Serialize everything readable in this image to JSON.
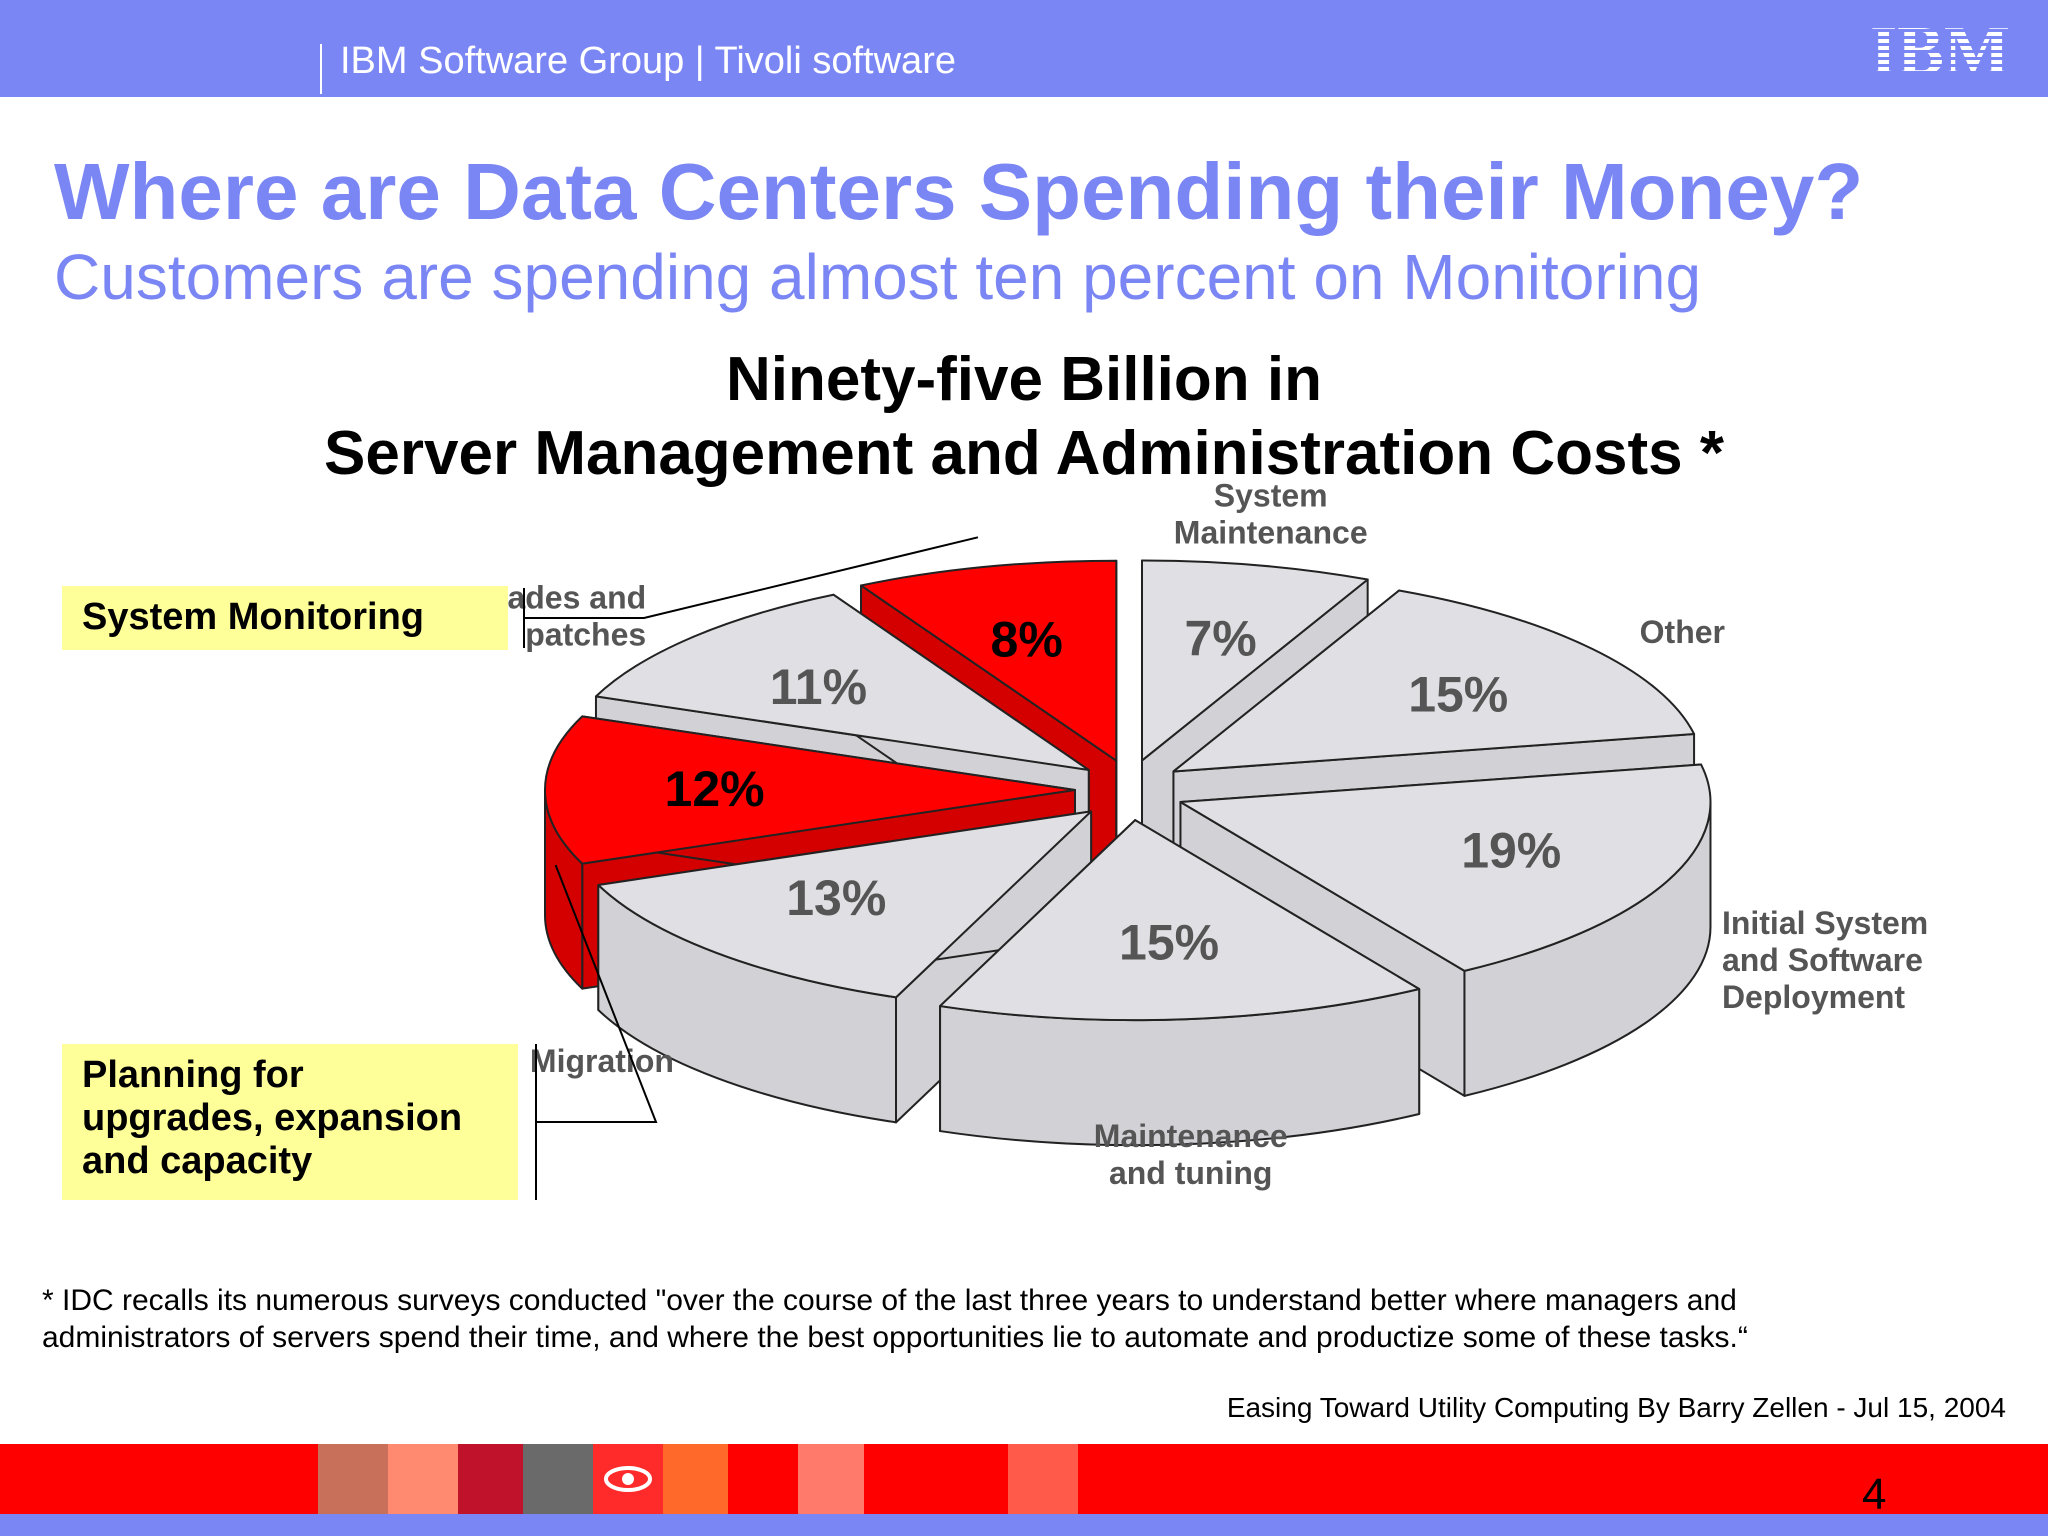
{
  "header": {
    "group": "IBM Software Group | Tivoli software",
    "logo_text": "IBM",
    "bar_color": "#7b86f5"
  },
  "slide": {
    "title": "Where are Data Centers Spending their Money?",
    "subtitle": "Customers are spending almost ten percent on Monitoring",
    "page_number": "4"
  },
  "callouts": {
    "monitoring": "System Monitoring",
    "planning": [
      "Planning for",
      "upgrades, expansion",
      "and capacity"
    ]
  },
  "footnote": {
    "lines": [
      "* IDC recalls its numerous surveys conducted \"over the course of the last three years to understand better where managers and",
      "administrators of servers spend their time, and where the best opportunities lie to automate and productize some of these tasks.“"
    ],
    "source": "Easing Toward Utility Computing By Barry Zellen - Jul 15, 2004"
  },
  "chart_data": {
    "type": "pie",
    "style": "3d-exploded",
    "title_lines": [
      "Ninety-five Billion in",
      "Server Management and Administration Costs *"
    ],
    "unit": "%",
    "slices": [
      {
        "label": "System Maintenance",
        "value": 7,
        "highlight": false
      },
      {
        "label": "Other",
        "value": 15,
        "highlight": false
      },
      {
        "label": "Initial System and Software Deployment",
        "value": 19,
        "highlight": false
      },
      {
        "label": "Maintenance and tuning",
        "value": 15,
        "highlight": false
      },
      {
        "label": "Migration",
        "value": 13,
        "highlight": false
      },
      {
        "label": "Planning for upgrades, expansion and capacity",
        "value": 12,
        "highlight": true
      },
      {
        "label": "Upgrades and patches",
        "value": 11,
        "highlight": false
      },
      {
        "label": "System Monitoring",
        "value": 8,
        "highlight": true
      }
    ],
    "slice_labels": {
      "System Maintenance": [
        "System",
        "Maintenance"
      ],
      "Other": [
        "Other"
      ],
      "Initial System and Software Deployment": [
        "Initial System",
        "and Software",
        "Deployment"
      ],
      "Maintenance and tuning": [
        "Maintenance",
        "and tuning"
      ],
      "Migration": [
        "Migration"
      ],
      "Upgrades and patches": [
        "Upgrades and",
        "patches"
      ]
    },
    "colors": {
      "highlight": "#ff0000",
      "normal": "#e0dfe3",
      "label": "#555555",
      "highlight_label": "#000000",
      "callout_bg": "#ffff99"
    }
  }
}
